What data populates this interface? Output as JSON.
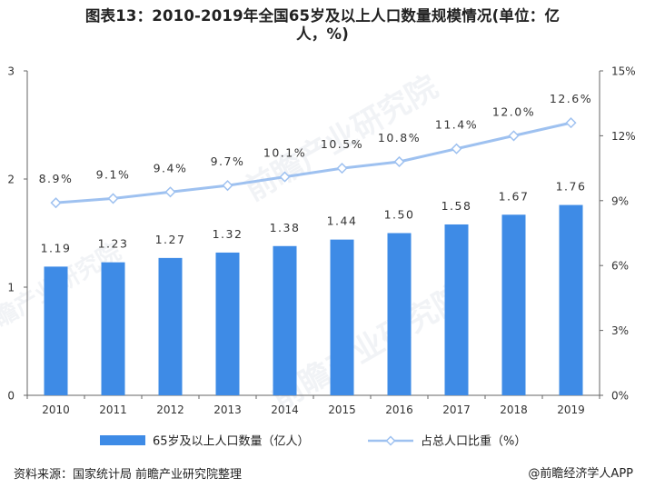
{
  "title": {
    "line1": "图表13：2010-2019年全国65岁及以上人口数量规模情况(单位：亿",
    "line2": "人，%)"
  },
  "chart_data": {
    "type": "bar",
    "categories": [
      "2010",
      "2011",
      "2012",
      "2013",
      "2014",
      "2015",
      "2016",
      "2017",
      "2018",
      "2019"
    ],
    "series": [
      {
        "name": "65岁及以上人口数量（亿人）",
        "type": "bar",
        "axis": "left",
        "color": "#3E8BE6",
        "values": [
          1.19,
          1.23,
          1.27,
          1.32,
          1.38,
          1.44,
          1.5,
          1.58,
          1.67,
          1.76
        ],
        "labels": [
          "1.19",
          "1.23",
          "1.27",
          "1.32",
          "1.38",
          "1.44",
          "1.50",
          "1.58",
          "1.67",
          "1.76"
        ]
      },
      {
        "name": "占总人口比重（%）",
        "type": "line",
        "axis": "right",
        "color": "#9EC1F0",
        "values": [
          8.9,
          9.1,
          9.4,
          9.7,
          10.1,
          10.5,
          10.8,
          11.4,
          12.0,
          12.6
        ],
        "labels": [
          "8.9%",
          "9.1%",
          "9.4%",
          "9.7%",
          "10.1%",
          "10.5%",
          "10.8%",
          "11.4%",
          "12.0%",
          "12.6%"
        ]
      }
    ],
    "y_left": {
      "lim": [
        0,
        3
      ],
      "ticks": [
        0,
        1,
        2,
        3
      ],
      "tick_labels": [
        "0",
        "1",
        "2",
        "3"
      ]
    },
    "y_right": {
      "lim": [
        0,
        15
      ],
      "ticks": [
        0,
        3,
        6,
        9,
        12,
        15
      ],
      "tick_labels": [
        "0%",
        "3%",
        "6%",
        "9%",
        "12%",
        "15%"
      ]
    },
    "grid": false,
    "legend_position": "bottom"
  },
  "footer": {
    "source_label": "资料来源：国家统计局",
    "source_org": "前瞻产业研究院整理",
    "brand": "@前瞻经济学人APP"
  },
  "watermark": {
    "text": "前瞻产业研究院"
  }
}
